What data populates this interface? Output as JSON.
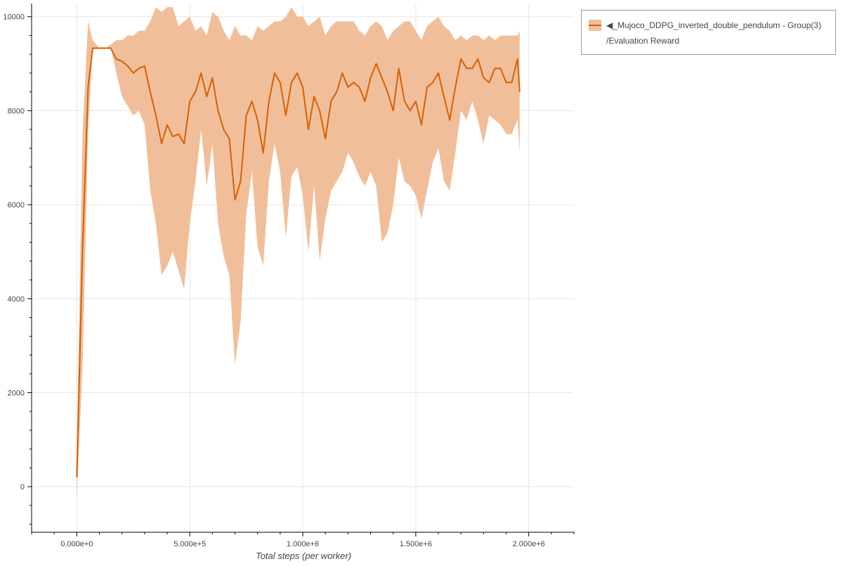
{
  "chart_data": {
    "type": "line",
    "title": "",
    "xlabel": "Total steps (per worker)",
    "ylabel": "",
    "xlim": [
      -200000,
      2200000
    ],
    "ylim": [
      -970,
      10280
    ],
    "grid": true,
    "legend_placement": "outside-top-right",
    "x_ticks": [
      0,
      500000,
      1000000,
      1500000,
      2000000
    ],
    "x_tick_labels": [
      "0.000e+0",
      "5.000e+5",
      "1.000e+6",
      "1.500e+6",
      "2.000e+6"
    ],
    "y_ticks": [
      0,
      2000,
      4000,
      6000,
      8000,
      10000
    ],
    "y_tick_labels": [
      "0",
      "2000",
      "4000",
      "6000",
      "8000",
      "10000"
    ],
    "legend": {
      "line1": "◀_Mujoco_DDPG_inverted_double_pendulum - Group(3)",
      "line2": "/Evaluation Reward"
    },
    "colors": {
      "line": "#d95f02",
      "band": "#f0bf9a"
    },
    "x": [
      0,
      25000,
      50000,
      70000,
      100000,
      125000,
      150000,
      175000,
      200000,
      225000,
      250000,
      275000,
      300000,
      325000,
      350000,
      375000,
      400000,
      425000,
      450000,
      475000,
      500000,
      525000,
      550000,
      575000,
      600000,
      625000,
      650000,
      675000,
      700000,
      725000,
      750000,
      775000,
      800000,
      825000,
      850000,
      875000,
      900000,
      925000,
      950000,
      975000,
      1000000,
      1025000,
      1050000,
      1075000,
      1100000,
      1125000,
      1150000,
      1175000,
      1200000,
      1225000,
      1250000,
      1275000,
      1300000,
      1325000,
      1350000,
      1375000,
      1400000,
      1425000,
      1450000,
      1475000,
      1500000,
      1525000,
      1550000,
      1575000,
      1600000,
      1625000,
      1650000,
      1675000,
      1700000,
      1725000,
      1750000,
      1775000,
      1800000,
      1825000,
      1850000,
      1875000,
      1900000,
      1925000,
      1950000,
      1960000
    ],
    "series": [
      {
        "mean": [
          200,
          5000,
          8500,
          9330,
          9330,
          9330,
          9330,
          9100,
          9050,
          8950,
          8800,
          8900,
          8950,
          8400,
          7900,
          7300,
          7700,
          7450,
          7500,
          7300,
          8200,
          8400,
          8800,
          8300,
          8700,
          8000,
          7600,
          7400,
          6100,
          6500,
          7900,
          8200,
          7800,
          7100,
          8200,
          8800,
          8600,
          7900,
          8600,
          8800,
          8500,
          7600,
          8300,
          8000,
          7400,
          8200,
          8400,
          8800,
          8500,
          8600,
          8500,
          8200,
          8700,
          9000,
          8700,
          8400,
          8000,
          8900,
          8200,
          8000,
          8200,
          7700,
          8500,
          8600,
          8800,
          8300,
          7800,
          8500,
          9100,
          8900,
          8900,
          9100,
          8700,
          8600,
          8900,
          8900,
          8600,
          8600,
          9100,
          8400
        ],
        "upper": [
          700,
          7500,
          9900,
          9500,
          9330,
          9330,
          9400,
          9500,
          9500,
          9600,
          9600,
          9700,
          9700,
          9900,
          10200,
          10100,
          10200,
          10200,
          9800,
          9900,
          10000,
          9700,
          9800,
          9600,
          10100,
          10000,
          9700,
          9500,
          9800,
          9600,
          9600,
          9500,
          9800,
          9700,
          9800,
          9900,
          9900,
          10000,
          10200,
          10000,
          10000,
          9800,
          9900,
          10000,
          9600,
          9800,
          9900,
          9900,
          9900,
          9900,
          9700,
          9600,
          9800,
          9900,
          9800,
          9500,
          9700,
          9800,
          9900,
          9900,
          9700,
          9500,
          9800,
          9900,
          10000,
          9800,
          9700,
          9500,
          9600,
          9500,
          9600,
          9600,
          9500,
          9600,
          9500,
          9600,
          9600,
          9600,
          9600,
          9700
        ],
        "lower": [
          -250,
          2500,
          7500,
          9300,
          9330,
          9330,
          9330,
          8800,
          8300,
          8100,
          7900,
          8000,
          7700,
          6300,
          5600,
          4500,
          4700,
          5000,
          4600,
          4200,
          5600,
          6500,
          7600,
          6400,
          7300,
          5600,
          4900,
          4500,
          2600,
          3500,
          5800,
          6700,
          5100,
          4700,
          6500,
          7300,
          6700,
          5300,
          6600,
          6800,
          6200,
          5000,
          6400,
          4800,
          5700,
          6300,
          6500,
          6700,
          7100,
          6900,
          6600,
          6400,
          6700,
          6400,
          5200,
          5400,
          6000,
          7000,
          6500,
          6400,
          6200,
          5700,
          6300,
          6900,
          7200,
          6500,
          6300,
          7100,
          8000,
          7800,
          8200,
          7800,
          7300,
          7900,
          7800,
          7700,
          7500,
          7500,
          7800,
          7100
        ]
      }
    ]
  }
}
